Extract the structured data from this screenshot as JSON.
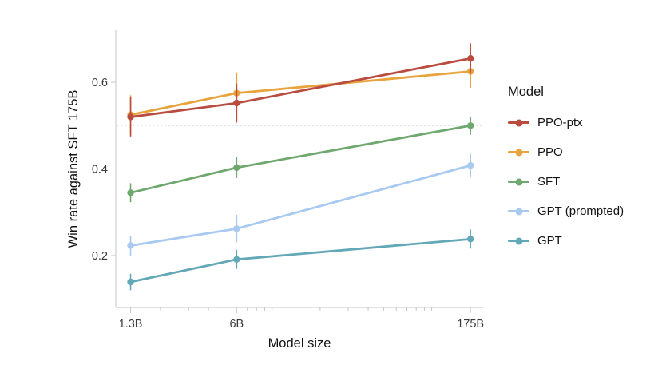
{
  "chart_data": {
    "type": "line",
    "title": "",
    "xlabel": "Model size",
    "ylabel": "Win rate against SFT 175B",
    "x_scale": "log",
    "x": [
      1.3,
      6,
      175
    ],
    "x_tick_labels": [
      "1.3B",
      "6B",
      "175B"
    ],
    "x_minor_ticks": [
      2,
      3,
      4,
      5,
      7,
      8,
      9,
      10,
      20,
      30,
      40,
      50,
      60,
      70,
      80,
      90,
      100
    ],
    "xlim": [
      1.05,
      210
    ],
    "ylim": [
      0.08,
      0.72
    ],
    "y_ticks": [
      0.2,
      0.4,
      0.6
    ],
    "reference_line_y": 0.5,
    "grid": "off",
    "legend_position": "right",
    "legend_title": "Model",
    "series": [
      {
        "name": "PPO-ptx",
        "color": "#b94c3f",
        "values": [
          0.52,
          0.552,
          0.655
        ],
        "errors": [
          0.045,
          0.045,
          0.035
        ]
      },
      {
        "name": "PPO",
        "color": "#e8a33d",
        "values": [
          0.525,
          0.575,
          0.625
        ],
        "errors": [
          0.045,
          0.048,
          0.038
        ]
      },
      {
        "name": "SFT",
        "color": "#6fa86f",
        "values": [
          0.345,
          0.403,
          0.5
        ],
        "errors": [
          0.022,
          0.024,
          0.021
        ]
      },
      {
        "name": "GPT (prompted)",
        "color": "#a8c9f0",
        "values": [
          0.223,
          0.262,
          0.408
        ],
        "errors": [
          0.023,
          0.032,
          0.027
        ]
      },
      {
        "name": "GPT",
        "color": "#62a8b7",
        "values": [
          0.139,
          0.191,
          0.238
        ],
        "errors": [
          0.019,
          0.022,
          0.022
        ]
      }
    ]
  }
}
